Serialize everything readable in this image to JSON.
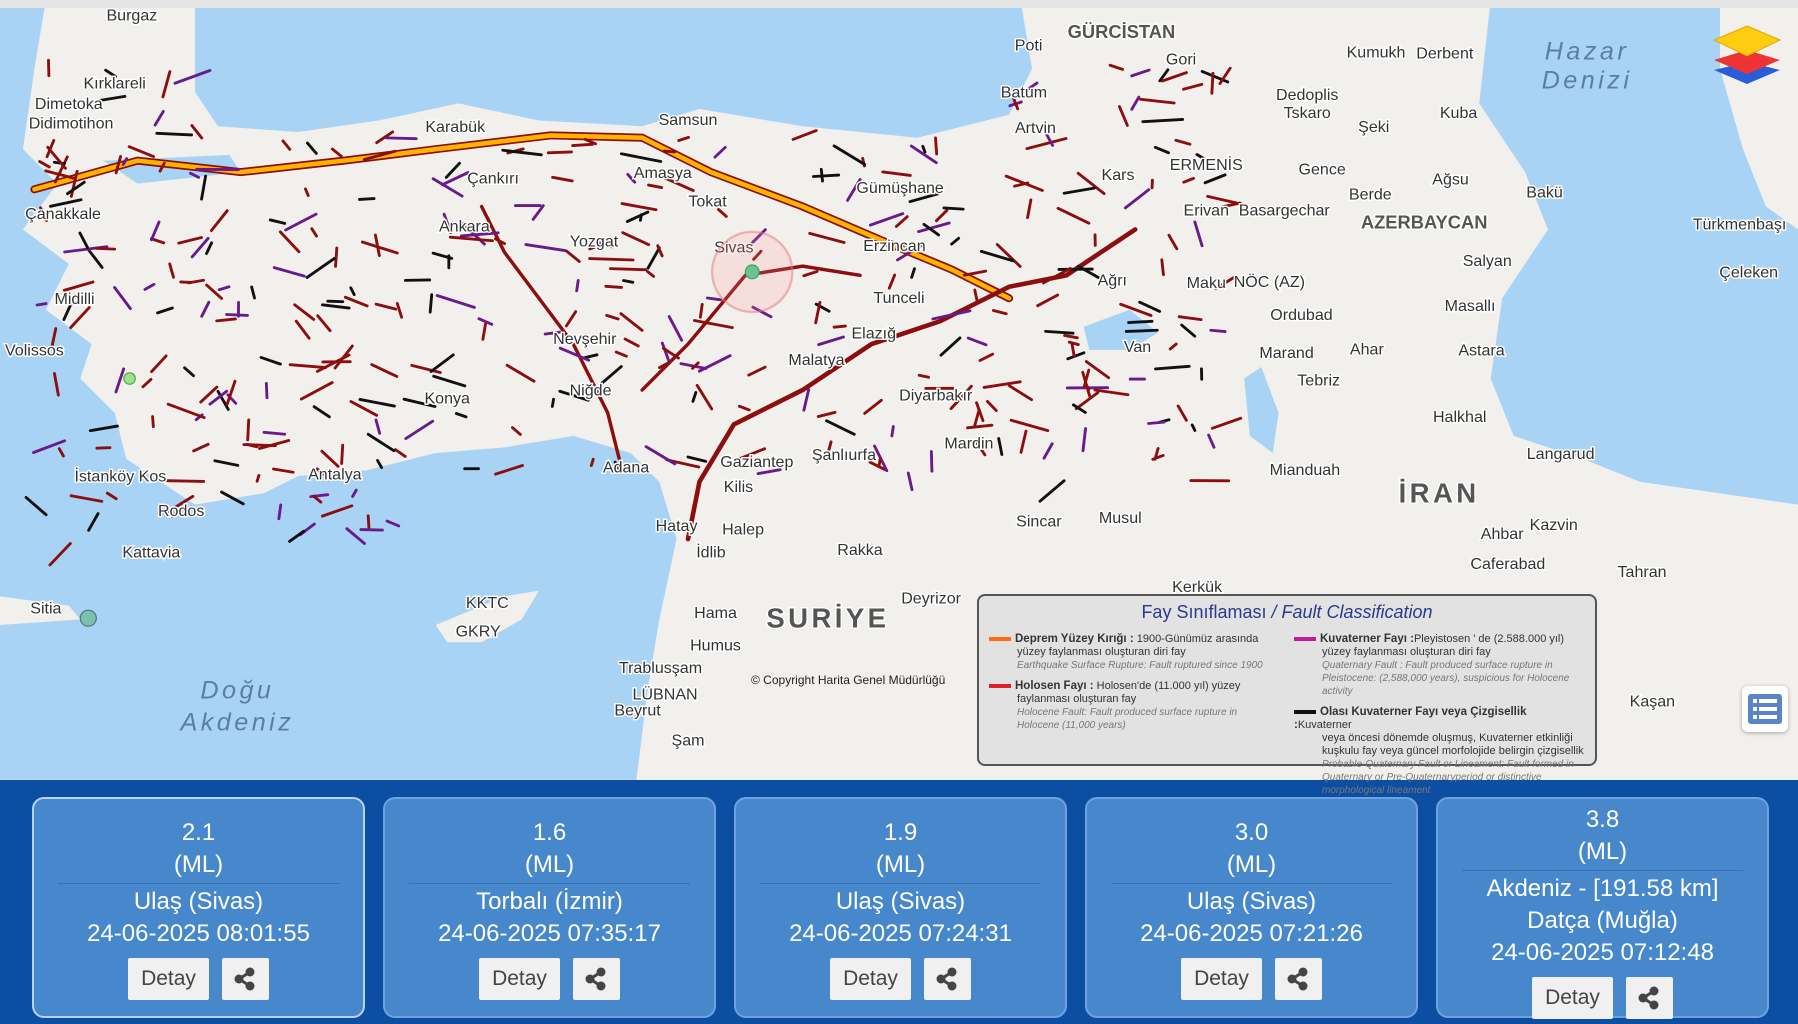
{
  "map": {
    "labels": [
      "Burgaz",
      "Kırklareli",
      "Dimetoka",
      "Didimotihon",
      "Çanakkale",
      "Midilli",
      "Volissos",
      "İstanköy Kos",
      "Rodos",
      "Kattavia",
      "Sitia",
      "Karabük",
      "Çankırı",
      "Ankara",
      "Yozgat",
      "Sivas",
      "Nevşehir",
      "Niğde",
      "Konya",
      "Antalya",
      "Adana",
      "Gaziantep",
      "Şanlıurfa",
      "Kilis",
      "Halep",
      "İdlib",
      "Hatay",
      "Rakka",
      "Hama",
      "Humus",
      "Trablusşam",
      "LÜBNAN",
      "Beyrut",
      "Şam",
      "Deyrizor",
      "Malatya",
      "Elazığ",
      "Tunceli",
      "Diyarbakır",
      "Mardin",
      "Sincar",
      "Musul",
      "Kerkük",
      "Erzincan",
      "Gümüşhane",
      "Samsun",
      "Amasya",
      "Tokat",
      "Poti",
      "Gori",
      "Batum",
      "Artvin",
      "Kars",
      "ERMENİS",
      "Erivan",
      "Basargechar",
      "Ağrı",
      "Van",
      "Maku",
      "NÖC (AZ)",
      "Ordubad",
      "Marand",
      "Ahar",
      "Tebriz",
      "Kumukh",
      "Derbent",
      "Dedoplis",
      "Tskaro",
      "Şeki",
      "Kuba",
      "Gence",
      "Berde",
      "Ağsu",
      "Bakü",
      "Salyan",
      "Masallı",
      "Astara",
      "Halkhal",
      "Langarud",
      "Mianduah",
      "Ahbar",
      "Kazvin",
      "Caferabad",
      "Tahran",
      "Kaşan",
      "Türkmenbaşı",
      "Çeleken",
      "KKTC",
      "GKRY"
    ],
    "countries": [
      "GÜRCİSTAN",
      "AZERBAYCAN"
    ],
    "big_labels": [
      "SURİYE",
      "İRAN"
    ],
    "seas": [
      "Hazar",
      "Denizi",
      "Doğu",
      "Akdeniz"
    ],
    "copyright": "© Copyright Harita Genel Müdürlüğü",
    "colors": {
      "sea": "#a9d3f5",
      "land": "#f2f0ec",
      "surface_rupture": "#ffb300",
      "holocene": "#8b0f0f",
      "quaternary": "#6a1a8a",
      "probable": "#111111",
      "epicenter": "#6fc28f"
    }
  },
  "legend": {
    "title_tr": "Fay Sınıflaması",
    "title_sep": " / ",
    "title_en": "Fault Classification",
    "items": [
      {
        "name": "Deprem Yüzey Kırığı :",
        "tr_head": " 1900-Günümüz arasında",
        "tr": "yüzey faylanması oluşturan diri fay",
        "en": "Earthquake Surface Rupture:  Fault ruptured since 1900",
        "color": "#ff6a13"
      },
      {
        "name": "Holosen Fayı :",
        "tr_head": "  Holosen'de  (11.000 yıl) yüzey",
        "tr": "faylanması oluşturan fay",
        "en": "Holocene  Fault: Fault  produced  surface rupture in Holocene (11,000 years)",
        "color": "#e0202a"
      },
      {
        "name": "Kuvaterner Fayı :",
        "tr_head": "Pleyistosen ' de (2.588.000 yıl)",
        "tr": "yüzey  faylanması  oluşturan diri fay",
        "en": "Quaternary Fault : Fault  produced  surface rupture in Pleistocene: (2,588,000 years), suspicious for Holocene activity",
        "color": "#c21a9a"
      },
      {
        "name": "Olası Kuvaterner Fayı veya Çizgisellik :",
        "tr_head": "Kuvaterner",
        "tr": "veya öncesi dönemde  oluşmuş, Kuvaterner etkinliği kuşkulu fay veya güncel morfolojide belirgin çizgisellik",
        "en": "Probable-Quaternary Fault or Lineament: Fault formed in Quaternary or Pre-Quaternaryperiod or distinctive morphological lineament",
        "color": "#111111"
      }
    ]
  },
  "controls": {
    "layers_icon": "layers-icon",
    "list_icon": "list-icon"
  },
  "events": [
    {
      "magnitude": "2.1",
      "type": "(ML)",
      "location": "Ulaş (Sivas)",
      "location2": "",
      "datetime": "24-06-2025 08:01:55",
      "detail_label": "Detay"
    },
    {
      "magnitude": "1.6",
      "type": "(ML)",
      "location": "Torbalı (İzmir)",
      "location2": "",
      "datetime": "24-06-2025 07:35:17",
      "detail_label": "Detay"
    },
    {
      "magnitude": "1.9",
      "type": "(ML)",
      "location": "Ulaş (Sivas)",
      "location2": "",
      "datetime": "24-06-2025 07:24:31",
      "detail_label": "Detay"
    },
    {
      "magnitude": "3.0",
      "type": "(ML)",
      "location": "Ulaş (Sivas)",
      "location2": "",
      "datetime": "24-06-2025 07:21:26",
      "detail_label": "Detay"
    },
    {
      "magnitude": "3.8",
      "type": "(ML)",
      "location": "Akdeniz - [191.58 km]",
      "location2": "Datça (Muğla)",
      "datetime": "24-06-2025 07:12:48",
      "detail_label": "Detay"
    }
  ]
}
